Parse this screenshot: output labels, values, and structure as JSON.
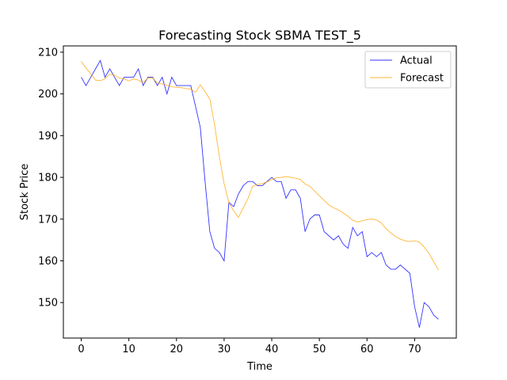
{
  "chart_data": {
    "type": "line",
    "title": "Forecasting Stock SBMA TEST_5",
    "xlabel": "Time",
    "ylabel": "Stock Price",
    "xlim": [
      -3.75,
      78.75
    ],
    "ylim": [
      141.5,
      211.5
    ],
    "xticks": [
      0,
      10,
      20,
      30,
      40,
      50,
      60,
      70
    ],
    "yticks": [
      150,
      160,
      170,
      180,
      190,
      200,
      210
    ],
    "grid": false,
    "legend": "top-right",
    "x": [
      0,
      1,
      2,
      3,
      4,
      5,
      6,
      7,
      8,
      9,
      10,
      11,
      12,
      13,
      14,
      15,
      16,
      17,
      18,
      19,
      20,
      21,
      22,
      23,
      24,
      25,
      26,
      27,
      28,
      29,
      30,
      31,
      32,
      33,
      34,
      35,
      36,
      37,
      38,
      39,
      40,
      41,
      42,
      43,
      44,
      45,
      46,
      47,
      48,
      49,
      50,
      51,
      52,
      53,
      54,
      55,
      56,
      57,
      58,
      59,
      60,
      61,
      62,
      63,
      64,
      65,
      66,
      67,
      68,
      69,
      70,
      71,
      72,
      73,
      74,
      75
    ],
    "series": [
      {
        "name": "Actual",
        "color": "#0000ff",
        "values": [
          204,
          202,
          204,
          206,
          208,
          204,
          206,
          204,
          202,
          204,
          204,
          204,
          206,
          202,
          204,
          204,
          202,
          204,
          200,
          204,
          202,
          202,
          202,
          202,
          197,
          192,
          179,
          167,
          163,
          162,
          160,
          174,
          173,
          176,
          178,
          179,
          179,
          178,
          178,
          179,
          180,
          179,
          179,
          175,
          177,
          177,
          175,
          167,
          170,
          171,
          171,
          167,
          166,
          165,
          166,
          164,
          163,
          168,
          166,
          167,
          161,
          162,
          161,
          162,
          159,
          158,
          158,
          159,
          158,
          157,
          149,
          144,
          150,
          149,
          147,
          146
        ]
      },
      {
        "name": "Forecast",
        "color": "#ffa500",
        "values": [
          207.8,
          206.2,
          204.8,
          203.3,
          203.2,
          203.6,
          204.7,
          204.5,
          203.8,
          203.6,
          203.1,
          203.6,
          203.3,
          202.7,
          203.8,
          203.8,
          202.6,
          202.4,
          202.1,
          201.7,
          201.6,
          201.5,
          201.3,
          201.1,
          200.4,
          202.2,
          200.5,
          198.8,
          192.6,
          185.0,
          178.5,
          173.9,
          172.0,
          170.4,
          172.7,
          174.9,
          177.9,
          178.3,
          178.5,
          178.9,
          179.5,
          179.9,
          180.0,
          180.2,
          180.0,
          179.8,
          179.5,
          178.4,
          177.9,
          176.7,
          175.6,
          174.5,
          173.4,
          172.7,
          172.2,
          171.5,
          170.7,
          169.7,
          169.3,
          169.6,
          169.9,
          170.0,
          169.8,
          169.1,
          167.7,
          166.7,
          165.8,
          165.2,
          164.8,
          164.6,
          164.8,
          164.5,
          163.3,
          161.8,
          159.8,
          157.8
        ]
      }
    ]
  }
}
